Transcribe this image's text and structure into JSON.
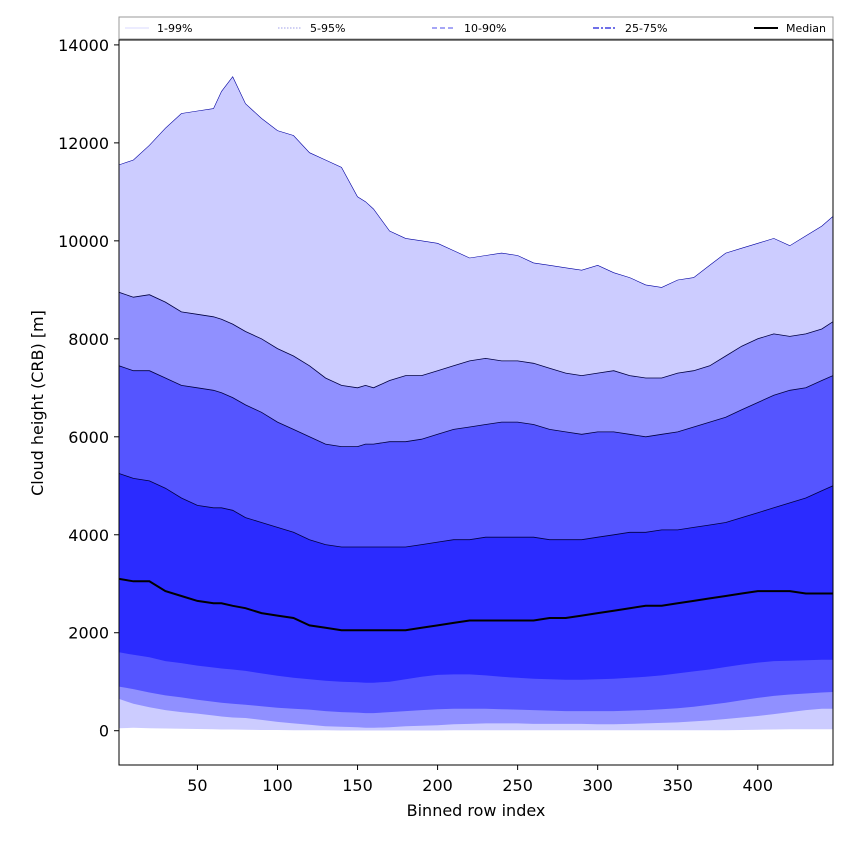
{
  "chart_data": {
    "type": "area",
    "title": "",
    "xlabel": "Binned row index",
    "ylabel": "Cloud height (CRB) [m]",
    "xlim": [
      1,
      447
    ],
    "ylim": [
      -700,
      14100
    ],
    "xticks": [
      50,
      100,
      150,
      200,
      250,
      300,
      350,
      400
    ],
    "yticks": [
      0,
      2000,
      4000,
      6000,
      8000,
      10000,
      12000,
      14000
    ],
    "legend_position": "top",
    "x": [
      1,
      10,
      20,
      30,
      40,
      50,
      60,
      65,
      72,
      80,
      90,
      100,
      110,
      120,
      130,
      140,
      150,
      155,
      160,
      170,
      180,
      190,
      200,
      210,
      220,
      230,
      240,
      250,
      260,
      270,
      280,
      290,
      300,
      310,
      320,
      330,
      340,
      350,
      360,
      370,
      380,
      390,
      400,
      410,
      420,
      430,
      440,
      447
    ],
    "series": [
      {
        "name": "1-99%",
        "lower": [
          50,
          60,
          50,
          45,
          40,
          35,
          30,
          25,
          25,
          20,
          15,
          15,
          10,
          10,
          10,
          5,
          5,
          5,
          5,
          5,
          5,
          5,
          5,
          10,
          10,
          10,
          10,
          10,
          10,
          10,
          10,
          10,
          10,
          10,
          10,
          10,
          10,
          10,
          10,
          10,
          10,
          15,
          20,
          25,
          30,
          30,
          30,
          30
        ],
        "upper": [
          11550,
          11650,
          11950,
          12300,
          12600,
          12650,
          12700,
          13050,
          13350,
          12800,
          12500,
          12250,
          12150,
          11800,
          11650,
          11500,
          10900,
          10800,
          10650,
          10200,
          10050,
          10000,
          9950,
          9800,
          9650,
          9700,
          9750,
          9700,
          9550,
          9500,
          9450,
          9400,
          9500,
          9350,
          9250,
          9100,
          9050,
          9200,
          9250,
          9500,
          9750,
          9850,
          9950,
          10050,
          9900,
          10100,
          10300,
          10500
        ]
      },
      {
        "name": "5-95%",
        "lower": [
          650,
          550,
          480,
          420,
          380,
          350,
          310,
          290,
          270,
          260,
          220,
          180,
          150,
          120,
          90,
          80,
          70,
          60,
          60,
          70,
          90,
          100,
          110,
          130,
          140,
          150,
          150,
          150,
          140,
          140,
          140,
          140,
          130,
          130,
          140,
          150,
          160,
          170,
          190,
          210,
          240,
          270,
          300,
          340,
          380,
          420,
          450,
          450
        ],
        "upper": [
          8950,
          8850,
          8900,
          8750,
          8550,
          8500,
          8450,
          8400,
          8300,
          8150,
          8000,
          7800,
          7650,
          7450,
          7200,
          7050,
          7000,
          7050,
          7000,
          7150,
          7250,
          7250,
          7350,
          7450,
          7550,
          7600,
          7550,
          7550,
          7500,
          7400,
          7300,
          7250,
          7300,
          7350,
          7250,
          7200,
          7200,
          7300,
          7350,
          7450,
          7650,
          7850,
          8000,
          8100,
          8050,
          8100,
          8200,
          8350
        ]
      },
      {
        "name": "10-90%",
        "lower": [
          900,
          850,
          780,
          720,
          680,
          630,
          590,
          570,
          550,
          530,
          500,
          470,
          450,
          430,
          400,
          380,
          370,
          360,
          360,
          380,
          400,
          420,
          440,
          450,
          450,
          450,
          440,
          430,
          420,
          410,
          400,
          400,
          400,
          400,
          410,
          420,
          440,
          460,
          490,
          530,
          570,
          620,
          670,
          710,
          740,
          760,
          780,
          790
        ],
        "upper": [
          7450,
          7350,
          7350,
          7200,
          7050,
          7000,
          6950,
          6900,
          6800,
          6650,
          6500,
          6300,
          6150,
          6000,
          5850,
          5800,
          5800,
          5850,
          5850,
          5900,
          5900,
          5950,
          6050,
          6150,
          6200,
          6250,
          6300,
          6300,
          6250,
          6150,
          6100,
          6050,
          6100,
          6100,
          6050,
          6000,
          6050,
          6100,
          6200,
          6300,
          6400,
          6550,
          6700,
          6850,
          6950,
          7000,
          7150,
          7250
        ]
      },
      {
        "name": "25-75%",
        "lower": [
          1600,
          1550,
          1500,
          1420,
          1380,
          1330,
          1290,
          1270,
          1250,
          1220,
          1170,
          1120,
          1080,
          1050,
          1020,
          1000,
          990,
          980,
          980,
          1000,
          1050,
          1100,
          1140,
          1150,
          1150,
          1130,
          1100,
          1080,
          1060,
          1050,
          1040,
          1040,
          1050,
          1060,
          1080,
          1100,
          1130,
          1170,
          1210,
          1250,
          1300,
          1350,
          1390,
          1420,
          1430,
          1440,
          1450,
          1450
        ],
        "upper": [
          5250,
          5150,
          5100,
          4950,
          4750,
          4600,
          4550,
          4550,
          4500,
          4350,
          4250,
          4150,
          4050,
          3900,
          3800,
          3750,
          3750,
          3750,
          3750,
          3750,
          3750,
          3800,
          3850,
          3900,
          3900,
          3950,
          3950,
          3950,
          3950,
          3900,
          3900,
          3900,
          3950,
          4000,
          4050,
          4050,
          4100,
          4100,
          4150,
          4200,
          4250,
          4350,
          4450,
          4550,
          4650,
          4750,
          4900,
          5000
        ]
      },
      {
        "name": "Median",
        "values": [
          3100,
          3050,
          3050,
          2850,
          2750,
          2650,
          2600,
          2600,
          2550,
          2500,
          2400,
          2350,
          2300,
          2150,
          2100,
          2050,
          2050,
          2050,
          2050,
          2050,
          2050,
          2100,
          2150,
          2200,
          2250,
          2250,
          2250,
          2250,
          2250,
          2300,
          2300,
          2350,
          2400,
          2450,
          2500,
          2550,
          2550,
          2600,
          2650,
          2700,
          2750,
          2800,
          2850,
          2850,
          2850,
          2800,
          2800,
          2800
        ]
      }
    ],
    "colors": {
      "1-99%": "#ccccff",
      "5-95%": "#9090ff",
      "10-90%": "#5555ff",
      "25-75%": "#2b2bff",
      "Median": "#000000",
      "upper_edge_1-99": "#0000a0",
      "upper_edge_other": "#000040"
    }
  }
}
